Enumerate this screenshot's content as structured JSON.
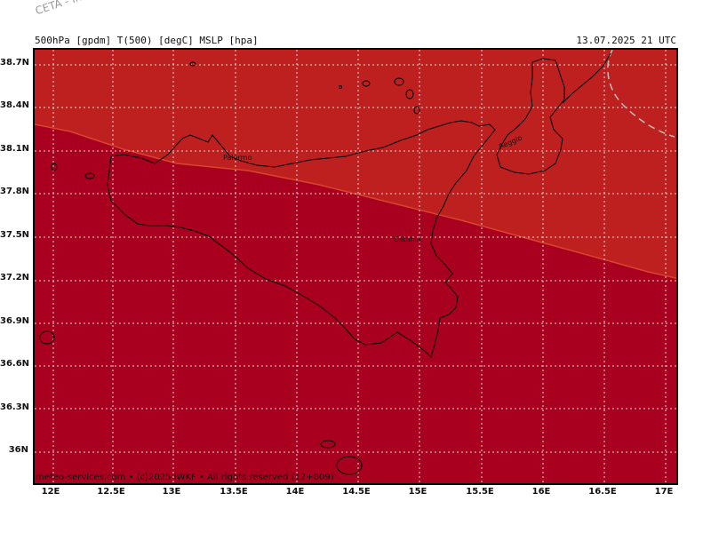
{
  "watermark": "CETA - Ins",
  "header": {
    "variables": "500hPa [gpdm] T(500) [degC] MSLP [hpa]",
    "datetime": "13.07.2025 21 UTC"
  },
  "map": {
    "lat_ticks": [
      "38.7N",
      "38.4N",
      "38.1N",
      "37.8N",
      "37.5N",
      "37.2N",
      "36.9N",
      "36.6N",
      "36.3N",
      "36N"
    ],
    "lon_ticks": [
      "12E",
      "12.5E",
      "13E",
      "13.5E",
      "14E",
      "14.5E",
      "15E",
      "15.5E",
      "16E",
      "16.5E",
      "17E"
    ],
    "cities": [
      "Palermo",
      "Catania",
      "Reggio"
    ],
    "colors": {
      "warm_zone": "#be1f1f",
      "hot_zone": "#a8001e",
      "gridline": "#d8d8d8",
      "coast": "#000000"
    }
  },
  "footer": "meteo-services.com • (c)2025 IWKF • All rights reserved (12+009)"
}
